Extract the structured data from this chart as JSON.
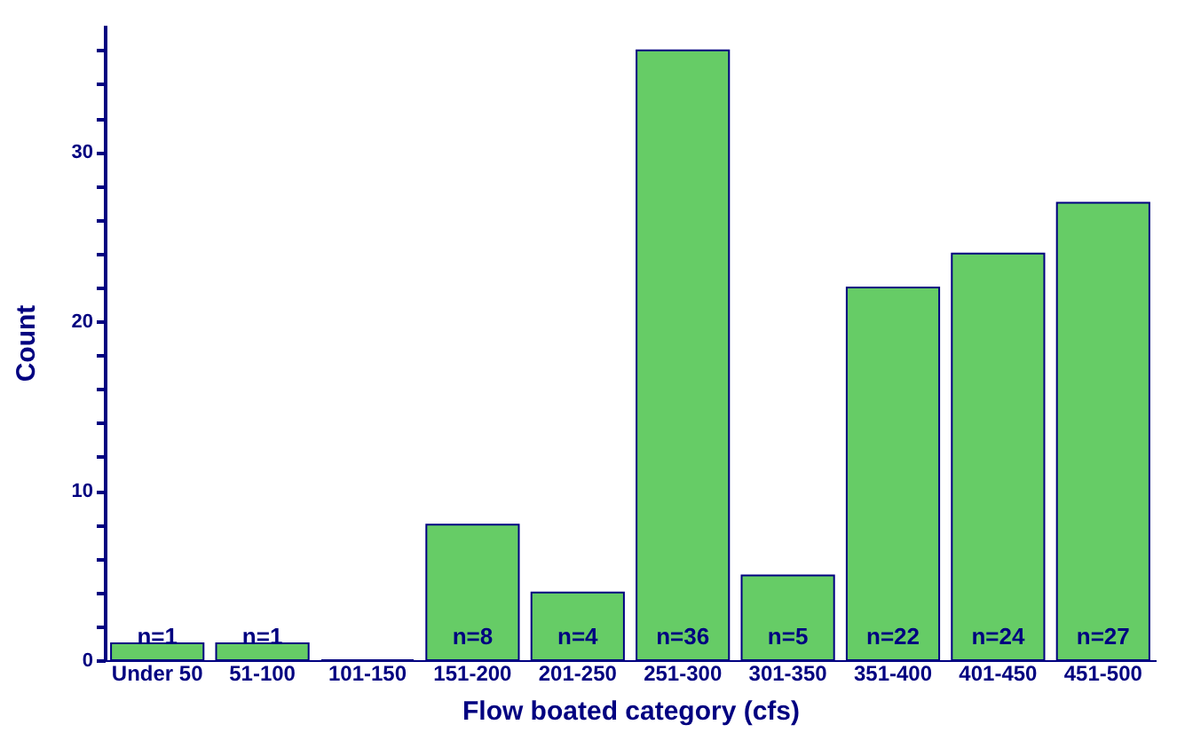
{
  "chart_data": {
    "type": "bar",
    "xlabel": "Flow boated category (cfs)",
    "ylabel": "Count",
    "categories": [
      "Under 50",
      "51-100",
      "101-150",
      "151-200",
      "201-250",
      "251-300",
      "301-350",
      "351-400",
      "401-450",
      "451-500"
    ],
    "values": [
      1,
      1,
      0,
      8,
      4,
      36,
      5,
      22,
      24,
      27
    ],
    "value_labels": [
      "n=1",
      "n=1",
      null,
      "n=8",
      "n=4",
      "n=36",
      "n=5",
      "n=22",
      "n=24",
      "n=27"
    ],
    "color": "#66cc66",
    "ylim": [
      0,
      37.5
    ],
    "yticks": [
      0,
      {
        "value": 2,
        "label": null
      },
      {
        "value": 4,
        "label": null
      },
      {
        "value": 6,
        "label": null
      },
      {
        "value": 8,
        "label": null
      },
      10,
      {
        "value": 12,
        "label": null
      },
      {
        "value": 14,
        "label": null
      },
      {
        "value": 16,
        "label": null
      },
      {
        "value": 18,
        "label": null
      },
      20,
      {
        "value": 22,
        "label": null
      },
      {
        "value": 24,
        "label": null
      },
      {
        "value": 26,
        "label": null
      },
      {
        "value": 28,
        "label": null
      },
      30,
      {
        "value": 32,
        "label": null
      },
      {
        "value": 34,
        "label": null
      },
      {
        "value": 36,
        "label": null
      }
    ],
    "grid": false
  }
}
